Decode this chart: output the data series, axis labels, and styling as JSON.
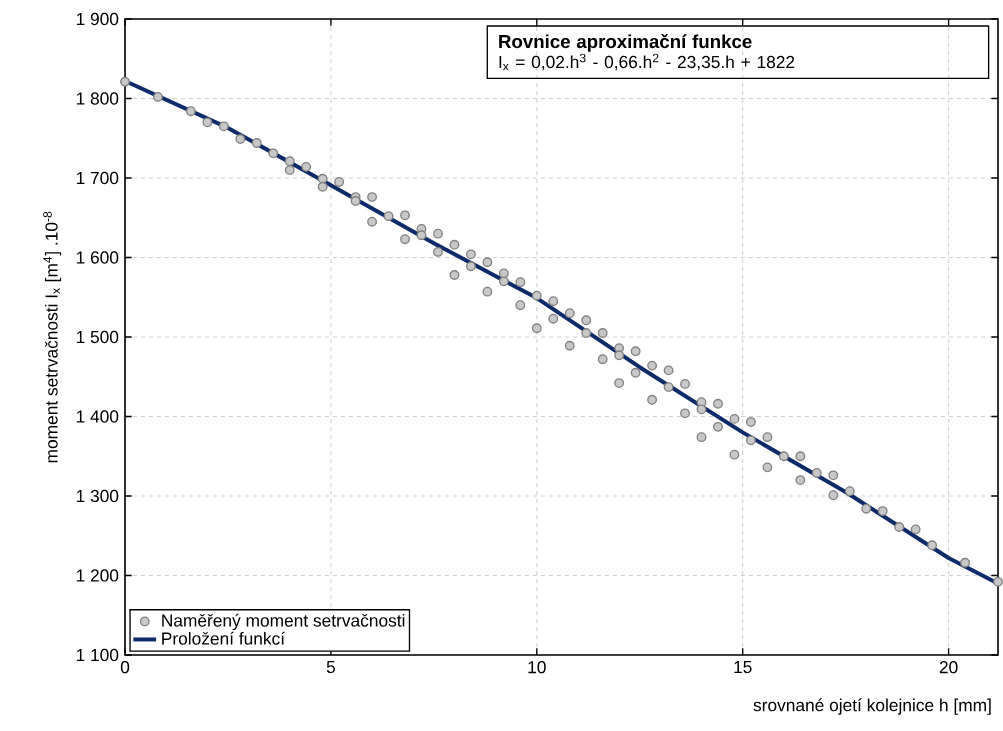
{
  "chart_data": {
    "type": "scatter",
    "xlabel": "srovnané ojetí kolejnice h [mm]",
    "ylabel": "moment setrvačnosti I$_{x}$ [m$^{4}$] .10$^{-8}$",
    "annotations": [
      "Rovnice aproximační funkce",
      "I$_{x}$ = 0,02.h$^{3}$ - 0,66.h$^{2}$ - 23,35.h + 1822"
    ],
    "xlim": [
      0,
      21.2
    ],
    "ylim": [
      1100,
      1900
    ],
    "xticks": [
      0,
      5,
      10,
      15,
      20
    ],
    "yticks": [
      {
        "value": 1100,
        "label": "1 100"
      },
      {
        "value": 1200,
        "label": "1 200"
      },
      {
        "value": 1300,
        "label": "1 300"
      },
      {
        "value": 1400,
        "label": "1 400"
      },
      {
        "value": 1500,
        "label": "1 500"
      },
      {
        "value": 1600,
        "label": "1 600"
      },
      {
        "value": 1700,
        "label": "1 700"
      },
      {
        "value": 1800,
        "label": "1 800"
      },
      {
        "value": 1900,
        "label": "1 900"
      }
    ],
    "grid": true,
    "legend": "bottom left",
    "series": [
      {
        "name": "Naměřený moment setrvačnosti",
        "color": "#c8c8c8",
        "marker": "circle",
        "x": [
          0,
          0.8,
          1.6,
          2.0,
          2.4,
          2.8,
          3.2,
          3.6,
          4.0,
          4.0,
          4.4,
          4.8,
          4.8,
          5.2,
          5.6,
          5.6,
          6.0,
          6.0,
          6.4,
          6.8,
          6.8,
          7.2,
          7.2,
          7.6,
          7.6,
          8.0,
          8.0,
          8.4,
          8.4,
          8.8,
          8.8,
          9.2,
          9.2,
          9.6,
          9.6,
          10.0,
          10.0,
          10.4,
          10.4,
          10.8,
          10.8,
          11.2,
          11.2,
          11.6,
          11.6,
          12.0,
          12.0,
          12.0,
          12.4,
          12.4,
          12.8,
          12.8,
          13.2,
          13.2,
          13.6,
          13.6,
          14.0,
          14.0,
          14.0,
          14.4,
          14.4,
          14.8,
          14.8,
          15.2,
          15.2,
          15.6,
          15.6,
          16.0,
          16.4,
          16.4,
          16.8,
          17.2,
          17.2,
          17.6,
          18.0,
          18.4,
          18.8,
          19.2,
          19.6,
          20.4,
          21.2
        ],
        "values": [
          1821,
          1802,
          1784,
          1770,
          1765,
          1749,
          1744,
          1731,
          1721,
          1710,
          1714,
          1699,
          1689,
          1695,
          1676,
          1671,
          1676,
          1645,
          1652,
          1653,
          1623,
          1636,
          1628,
          1630,
          1607,
          1616,
          1578,
          1604,
          1589,
          1594,
          1557,
          1580,
          1570,
          1569,
          1540,
          1552,
          1511,
          1545,
          1523,
          1530,
          1489,
          1521,
          1505,
          1505,
          1472,
          1486,
          1477,
          1442,
          1482,
          1455,
          1464,
          1421,
          1458,
          1437,
          1441,
          1404,
          1418,
          1409,
          1374,
          1416,
          1387,
          1397,
          1352,
          1393,
          1370,
          1374,
          1336,
          1350,
          1350,
          1320,
          1329,
          1326,
          1301,
          1306,
          1284,
          1281,
          1261,
          1258,
          1238,
          1216,
          1192
        ]
      },
      {
        "name": "Proložení funkcí",
        "type": "line",
        "color": "#0d2a6b",
        "marker": "none",
        "x": [
          0,
          2.5,
          5,
          7.5,
          10,
          12.5,
          15,
          17.5,
          20,
          21.2
        ],
        "values": [
          1822,
          1763,
          1691,
          1618,
          1549,
          1462,
          1380,
          1305,
          1222,
          1190
        ]
      }
    ]
  }
}
